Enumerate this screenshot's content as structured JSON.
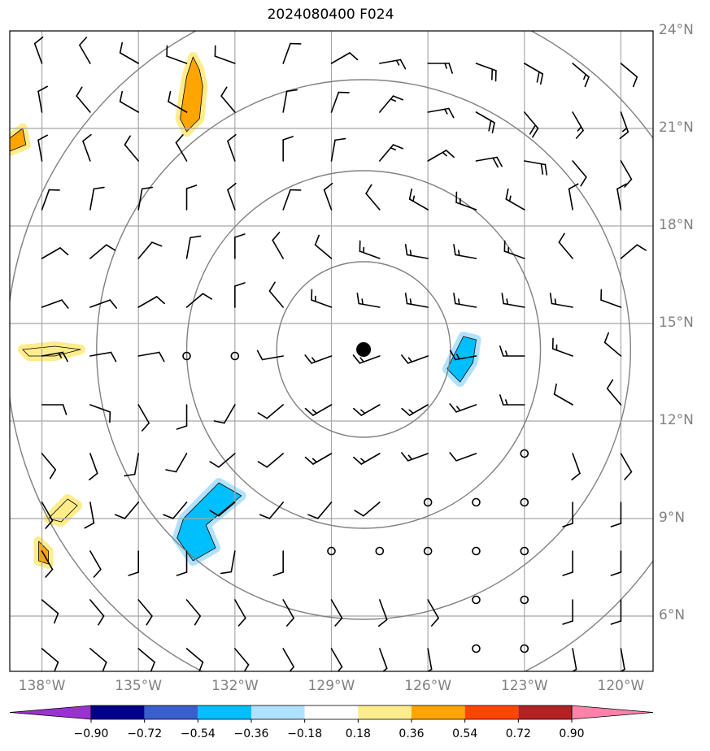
{
  "title": "2024080400 F024",
  "map": {
    "lon_range": [
      -139,
      -119
    ],
    "lat_range": [
      4.3,
      24.0
    ],
    "center": {
      "lon": -128.0,
      "lat": 14.2
    },
    "lat_ticks": [
      6,
      9,
      12,
      15,
      18,
      21,
      24
    ],
    "lat_labels": [
      "6°N",
      "9°N",
      "12°N",
      "15°N",
      "18°N",
      "21°N",
      "24°N"
    ],
    "lon_ticks": [
      -138,
      -135,
      -132,
      -129,
      -126,
      -123,
      -120
    ],
    "lon_labels": [
      "138°W",
      "135°W",
      "132°W",
      "129°W",
      "126°W",
      "123°W",
      "120°W"
    ],
    "range_rings_deg": [
      2.7,
      5.5,
      8.3,
      11.1
    ],
    "colors": {
      "grid": "#a8a8a8",
      "rings": "#808080",
      "barb": "#000000"
    }
  },
  "colorbar": {
    "levels": [
      -0.9,
      -0.72,
      -0.54,
      -0.36,
      -0.18,
      0.18,
      0.36,
      0.54,
      0.72,
      0.9
    ],
    "tick_labels": [
      "−0.90",
      "−0.72",
      "−0.54",
      "−0.36",
      "−0.18",
      "0.18",
      "0.36",
      "0.54",
      "0.72",
      "0.90"
    ],
    "colors": [
      "#9a32cd",
      "#00008b",
      "#3a5fcd",
      "#00bfff",
      "#b0e2ff",
      "#ffffff",
      "#ffec8b",
      "#ffa500",
      "#ff4500",
      "#b22222",
      "#ff82ab"
    ]
  },
  "shaded_regions": [
    {
      "name": "positive-anomaly-nw",
      "level": 0.36,
      "color": "#ffa500",
      "points": [
        [
          -133.3,
          23.2
        ],
        [
          -133.1,
          22.8
        ],
        [
          -133.0,
          22.3
        ],
        [
          -133.1,
          21.3
        ],
        [
          -133.5,
          20.9
        ],
        [
          -133.7,
          21.3
        ],
        [
          -133.6,
          22.0
        ],
        [
          -133.5,
          22.6
        ]
      ]
    },
    {
      "name": "positive-anomaly-w-edge",
      "level": 0.36,
      "color": "#ffa500",
      "points": [
        [
          -139.0,
          20.7
        ],
        [
          -138.6,
          21.0
        ],
        [
          -138.5,
          20.5
        ],
        [
          -139.0,
          20.3
        ]
      ]
    },
    {
      "name": "positive-anomaly-15n",
      "level": 0.18,
      "color": "#ffec8b",
      "points": [
        [
          -138.6,
          14.2
        ],
        [
          -137.6,
          14.3
        ],
        [
          -136.8,
          14.2
        ],
        [
          -137.6,
          14.0
        ],
        [
          -138.4,
          14.0
        ]
      ]
    },
    {
      "name": "positive-anomaly-9n",
      "level": 0.18,
      "color": "#ffec8b",
      "points": [
        [
          -137.8,
          9.0
        ],
        [
          -137.2,
          9.6
        ],
        [
          -136.9,
          9.4
        ],
        [
          -137.4,
          8.9
        ]
      ]
    },
    {
      "name": "positive-anomaly-8n",
      "level": 0.36,
      "color": "#ffa500",
      "points": [
        [
          -138.1,
          8.3
        ],
        [
          -137.8,
          8.0
        ],
        [
          -137.8,
          7.6
        ],
        [
          -138.1,
          7.7
        ]
      ]
    },
    {
      "name": "negative-anomaly-sw",
      "level": -0.36,
      "color": "#00bfff",
      "points": [
        [
          -133.6,
          9.0
        ],
        [
          -132.5,
          10.1
        ],
        [
          -131.8,
          9.7
        ],
        [
          -132.9,
          8.8
        ],
        [
          -132.6,
          8.1
        ],
        [
          -133.3,
          7.7
        ],
        [
          -133.8,
          8.4
        ]
      ]
    },
    {
      "name": "negative-anomaly-e",
      "level": -0.36,
      "color": "#00bfff",
      "points": [
        [
          -124.9,
          14.6
        ],
        [
          -124.5,
          14.5
        ],
        [
          -124.6,
          13.8
        ],
        [
          -125.0,
          13.2
        ],
        [
          -125.4,
          13.6
        ]
      ]
    }
  ],
  "wind_barbs": [
    {
      "lon": -138,
      "lat": 23,
      "dir": 340,
      "spd": 10
    },
    {
      "lon": -136.5,
      "lat": 23,
      "dir": 330,
      "spd": 10
    },
    {
      "lon": -135,
      "lat": 23,
      "dir": 300,
      "spd": 10
    },
    {
      "lon": -133.5,
      "lat": 23,
      "dir": 290,
      "spd": 10
    },
    {
      "lon": -132,
      "lat": 23,
      "dir": 290,
      "spd": 10
    },
    {
      "lon": -130.5,
      "lat": 23,
      "dir": 20,
      "spd": 10
    },
    {
      "lon": -129,
      "lat": 23,
      "dir": 60,
      "spd": 10
    },
    {
      "lon": -127.5,
      "lat": 23,
      "dir": 80,
      "spd": 15
    },
    {
      "lon": -126,
      "lat": 23,
      "dir": 90,
      "spd": 15
    },
    {
      "lon": -124.5,
      "lat": 23,
      "dir": 110,
      "spd": 20
    },
    {
      "lon": -123,
      "lat": 23,
      "dir": 120,
      "spd": 20
    },
    {
      "lon": -121.5,
      "lat": 23,
      "dir": 130,
      "spd": 15
    },
    {
      "lon": -120,
      "lat": 23,
      "dir": 130,
      "spd": 10
    },
    {
      "lon": -138,
      "lat": 21.5,
      "dir": 350,
      "spd": 10
    },
    {
      "lon": -136.5,
      "lat": 21.5,
      "dir": 320,
      "spd": 10
    },
    {
      "lon": -135,
      "lat": 21.5,
      "dir": 300,
      "spd": 10
    },
    {
      "lon": -133.5,
      "lat": 21.5,
      "dir": 300,
      "spd": 10
    },
    {
      "lon": -132,
      "lat": 21.5,
      "dir": 320,
      "spd": 10
    },
    {
      "lon": -130.5,
      "lat": 21.5,
      "dir": 10,
      "spd": 10
    },
    {
      "lon": -129,
      "lat": 21.5,
      "dir": 20,
      "spd": 10
    },
    {
      "lon": -127.5,
      "lat": 21.5,
      "dir": 40,
      "spd": 15
    },
    {
      "lon": -126,
      "lat": 21.5,
      "dir": 80,
      "spd": 15
    },
    {
      "lon": -124.5,
      "lat": 21.5,
      "dir": 120,
      "spd": 20
    },
    {
      "lon": -123,
      "lat": 21.5,
      "dir": 140,
      "spd": 20
    },
    {
      "lon": -121.5,
      "lat": 21.5,
      "dir": 150,
      "spd": 15
    },
    {
      "lon": -120,
      "lat": 21.5,
      "dir": 160,
      "spd": 15
    },
    {
      "lon": -138,
      "lat": 20,
      "dir": 350,
      "spd": 10
    },
    {
      "lon": -136.5,
      "lat": 20,
      "dir": 340,
      "spd": 10
    },
    {
      "lon": -135,
      "lat": 20,
      "dir": 320,
      "spd": 10
    },
    {
      "lon": -133.5,
      "lat": 20,
      "dir": 330,
      "spd": 10
    },
    {
      "lon": -132,
      "lat": 20,
      "dir": 340,
      "spd": 10
    },
    {
      "lon": -130.5,
      "lat": 20,
      "dir": 0,
      "spd": 10
    },
    {
      "lon": -129,
      "lat": 20,
      "dir": 10,
      "spd": 10
    },
    {
      "lon": -127.5,
      "lat": 20,
      "dir": 40,
      "spd": 15
    },
    {
      "lon": -126,
      "lat": 20,
      "dir": 60,
      "spd": 15
    },
    {
      "lon": -124.5,
      "lat": 20,
      "dir": 80,
      "spd": 20
    },
    {
      "lon": -123,
      "lat": 20,
      "dir": 100,
      "spd": 20
    },
    {
      "lon": -121.5,
      "lat": 20,
      "dir": 140,
      "spd": 10
    },
    {
      "lon": -120,
      "lat": 20,
      "dir": 150,
      "spd": 10
    },
    {
      "lon": -138,
      "lat": 18.5,
      "dir": 20,
      "spd": 10
    },
    {
      "lon": -136.5,
      "lat": 18.5,
      "dir": 10,
      "spd": 10
    },
    {
      "lon": -135,
      "lat": 18.5,
      "dir": 10,
      "spd": 10
    },
    {
      "lon": -133.5,
      "lat": 18.5,
      "dir": 0,
      "spd": 10
    },
    {
      "lon": -132,
      "lat": 18.5,
      "dir": 340,
      "spd": 10
    },
    {
      "lon": -130.5,
      "lat": 18.5,
      "dir": 20,
      "spd": 10
    },
    {
      "lon": -129,
      "lat": 18.5,
      "dir": 340,
      "spd": 10
    },
    {
      "lon": -127.5,
      "lat": 18.5,
      "dir": 320,
      "spd": 10
    },
    {
      "lon": -126,
      "lat": 18.5,
      "dir": 300,
      "spd": 15
    },
    {
      "lon": -124.5,
      "lat": 18.5,
      "dir": 290,
      "spd": 15
    },
    {
      "lon": -123,
      "lat": 18.5,
      "dir": 300,
      "spd": 15
    },
    {
      "lon": -121.5,
      "lat": 18.5,
      "dir": 350,
      "spd": 10
    },
    {
      "lon": -120,
      "lat": 18.5,
      "dir": 350,
      "spd": 10
    },
    {
      "lon": -138,
      "lat": 17,
      "dir": 60,
      "spd": 10
    },
    {
      "lon": -136.5,
      "lat": 17,
      "dir": 50,
      "spd": 10
    },
    {
      "lon": -135,
      "lat": 17,
      "dir": 40,
      "spd": 10
    },
    {
      "lon": -133.5,
      "lat": 17,
      "dir": 10,
      "spd": 10
    },
    {
      "lon": -132,
      "lat": 17,
      "dir": 0,
      "spd": 10
    },
    {
      "lon": -130.5,
      "lat": 17,
      "dir": 330,
      "spd": 10
    },
    {
      "lon": -129,
      "lat": 17,
      "dir": 310,
      "spd": 10
    },
    {
      "lon": -127.5,
      "lat": 17,
      "dir": 290,
      "spd": 15
    },
    {
      "lon": -126,
      "lat": 17,
      "dir": 280,
      "spd": 15
    },
    {
      "lon": -124.5,
      "lat": 17,
      "dir": 280,
      "spd": 15
    },
    {
      "lon": -123,
      "lat": 17,
      "dir": 290,
      "spd": 15
    },
    {
      "lon": -121.5,
      "lat": 17,
      "dir": 320,
      "spd": 10
    },
    {
      "lon": -120,
      "lat": 17,
      "dir": 50,
      "spd": 10
    },
    {
      "lon": -138,
      "lat": 15.5,
      "dir": 70,
      "spd": 10
    },
    {
      "lon": -136.5,
      "lat": 15.5,
      "dir": 70,
      "spd": 10
    },
    {
      "lon": -135,
      "lat": 15.5,
      "dir": 60,
      "spd": 10
    },
    {
      "lon": -133.5,
      "lat": 15.5,
      "dir": 50,
      "spd": 10
    },
    {
      "lon": -132,
      "lat": 15.5,
      "dir": 0,
      "spd": 10
    },
    {
      "lon": -130.5,
      "lat": 15.5,
      "dir": 320,
      "spd": 10
    },
    {
      "lon": -129,
      "lat": 15.5,
      "dir": 290,
      "spd": 15
    },
    {
      "lon": -127.5,
      "lat": 15.5,
      "dir": 280,
      "spd": 15
    },
    {
      "lon": -126,
      "lat": 15.5,
      "dir": 280,
      "spd": 15
    },
    {
      "lon": -124.5,
      "lat": 15.5,
      "dir": 280,
      "spd": 15
    },
    {
      "lon": -123,
      "lat": 15.5,
      "dir": 280,
      "spd": 15
    },
    {
      "lon": -121.5,
      "lat": 15.5,
      "dir": 280,
      "spd": 15
    },
    {
      "lon": -120,
      "lat": 15.5,
      "dir": 290,
      "spd": 10
    },
    {
      "lon": -138,
      "lat": 14,
      "dir": 80,
      "spd": 15
    },
    {
      "lon": -136.5,
      "lat": 14,
      "dir": 80,
      "spd": 10
    },
    {
      "lon": -135,
      "lat": 14,
      "dir": 80,
      "spd": 10
    },
    {
      "lon": -133.5,
      "lat": 14,
      "dir": 0,
      "spd": 0
    },
    {
      "lon": -132,
      "lat": 14,
      "dir": 0,
      "spd": 0
    },
    {
      "lon": -130.5,
      "lat": 14,
      "dir": 260,
      "spd": 10
    },
    {
      "lon": -129,
      "lat": 14,
      "dir": 250,
      "spd": 15
    },
    {
      "lon": -127.5,
      "lat": 14,
      "dir": 250,
      "spd": 15
    },
    {
      "lon": -126,
      "lat": 14,
      "dir": 250,
      "spd": 15
    },
    {
      "lon": -124.5,
      "lat": 14,
      "dir": 260,
      "spd": 15
    },
    {
      "lon": -123,
      "lat": 14,
      "dir": 270,
      "spd": 15
    },
    {
      "lon": -121.5,
      "lat": 14,
      "dir": 290,
      "spd": 15
    },
    {
      "lon": -120,
      "lat": 14,
      "dir": 310,
      "spd": 10
    },
    {
      "lon": -138,
      "lat": 12.5,
      "dir": 90,
      "spd": 10
    },
    {
      "lon": -136.5,
      "lat": 12.5,
      "dir": 110,
      "spd": 10
    },
    {
      "lon": -135,
      "lat": 12.5,
      "dir": 150,
      "spd": 10
    },
    {
      "lon": -133.5,
      "lat": 12.5,
      "dir": 180,
      "spd": 10
    },
    {
      "lon": -132,
      "lat": 12.5,
      "dir": 210,
      "spd": 10
    },
    {
      "lon": -130.5,
      "lat": 12.5,
      "dir": 230,
      "spd": 10
    },
    {
      "lon": -129,
      "lat": 12.5,
      "dir": 240,
      "spd": 15
    },
    {
      "lon": -127.5,
      "lat": 12.5,
      "dir": 240,
      "spd": 15
    },
    {
      "lon": -126,
      "lat": 12.5,
      "dir": 240,
      "spd": 15
    },
    {
      "lon": -124.5,
      "lat": 12.5,
      "dir": 250,
      "spd": 15
    },
    {
      "lon": -123,
      "lat": 12.5,
      "dir": 270,
      "spd": 15
    },
    {
      "lon": -121.5,
      "lat": 12.5,
      "dir": 300,
      "spd": 10
    },
    {
      "lon": -120,
      "lat": 12.5,
      "dir": 320,
      "spd": 10
    },
    {
      "lon": -138,
      "lat": 11,
      "dir": 140,
      "spd": 10
    },
    {
      "lon": -136.5,
      "lat": 11,
      "dir": 160,
      "spd": 10
    },
    {
      "lon": -135,
      "lat": 11,
      "dir": 190,
      "spd": 10
    },
    {
      "lon": -133.5,
      "lat": 11,
      "dir": 210,
      "spd": 10
    },
    {
      "lon": -132,
      "lat": 11,
      "dir": 230,
      "spd": 10
    },
    {
      "lon": -130.5,
      "lat": 11,
      "dir": 230,
      "spd": 10
    },
    {
      "lon": -129,
      "lat": 11,
      "dir": 240,
      "spd": 15
    },
    {
      "lon": -127.5,
      "lat": 11,
      "dir": 240,
      "spd": 15
    },
    {
      "lon": -126,
      "lat": 11,
      "dir": 250,
      "spd": 15
    },
    {
      "lon": -124.5,
      "lat": 11,
      "dir": 250,
      "spd": 10
    },
    {
      "lon": -123,
      "lat": 11,
      "dir": 0,
      "spd": 0
    },
    {
      "lon": -121.5,
      "lat": 11,
      "dir": 160,
      "spd": 10
    },
    {
      "lon": -120,
      "lat": 11,
      "dir": 150,
      "spd": 10
    },
    {
      "lon": -138,
      "lat": 9.5,
      "dir": 150,
      "spd": 10
    },
    {
      "lon": -136.5,
      "lat": 9.5,
      "dir": 170,
      "spd": 10
    },
    {
      "lon": -135,
      "lat": 9.5,
      "dir": 220,
      "spd": 10
    },
    {
      "lon": -133.5,
      "lat": 9.5,
      "dir": 220,
      "spd": 10
    },
    {
      "lon": -132,
      "lat": 9.5,
      "dir": 230,
      "spd": 10
    },
    {
      "lon": -130.5,
      "lat": 9.5,
      "dir": 220,
      "spd": 10
    },
    {
      "lon": -129,
      "lat": 9.5,
      "dir": 220,
      "spd": 10
    },
    {
      "lon": -127.5,
      "lat": 9.5,
      "dir": 230,
      "spd": 10
    },
    {
      "lon": -126,
      "lat": 9.5,
      "dir": 0,
      "spd": 0
    },
    {
      "lon": -124.5,
      "lat": 9.5,
      "dir": 0,
      "spd": 0
    },
    {
      "lon": -123,
      "lat": 9.5,
      "dir": 0,
      "spd": 0
    },
    {
      "lon": -121.5,
      "lat": 9.5,
      "dir": 180,
      "spd": 10
    },
    {
      "lon": -120,
      "lat": 9.5,
      "dir": 180,
      "spd": 10
    },
    {
      "lon": -138,
      "lat": 8,
      "dir": 150,
      "spd": 10
    },
    {
      "lon": -136.5,
      "lat": 8,
      "dir": 150,
      "spd": 10
    },
    {
      "lon": -135,
      "lat": 8,
      "dir": 180,
      "spd": 10
    },
    {
      "lon": -133.5,
      "lat": 8,
      "dir": 180,
      "spd": 10
    },
    {
      "lon": -132,
      "lat": 8,
      "dir": 190,
      "spd": 10
    },
    {
      "lon": -130.5,
      "lat": 8,
      "dir": 180,
      "spd": 10
    },
    {
      "lon": -129,
      "lat": 8,
      "dir": 0,
      "spd": 0
    },
    {
      "lon": -127.5,
      "lat": 8,
      "dir": 0,
      "spd": 0
    },
    {
      "lon": -126,
      "lat": 8,
      "dir": 0,
      "spd": 0
    },
    {
      "lon": -124.5,
      "lat": 8,
      "dir": 0,
      "spd": 0
    },
    {
      "lon": -123,
      "lat": 8,
      "dir": 0,
      "spd": 0
    },
    {
      "lon": -121.5,
      "lat": 8,
      "dir": 180,
      "spd": 10
    },
    {
      "lon": -120,
      "lat": 8,
      "dir": 180,
      "spd": 10
    },
    {
      "lon": -138,
      "lat": 6.5,
      "dir": 130,
      "spd": 10
    },
    {
      "lon": -136.5,
      "lat": 6.5,
      "dir": 140,
      "spd": 10
    },
    {
      "lon": -135,
      "lat": 6.5,
      "dir": 140,
      "spd": 10
    },
    {
      "lon": -133.5,
      "lat": 6.5,
      "dir": 140,
      "spd": 10
    },
    {
      "lon": -132,
      "lat": 6.5,
      "dir": 150,
      "spd": 10
    },
    {
      "lon": -130.5,
      "lat": 6.5,
      "dir": 150,
      "spd": 10
    },
    {
      "lon": -129,
      "lat": 6.5,
      "dir": 150,
      "spd": 10
    },
    {
      "lon": -127.5,
      "lat": 6.5,
      "dir": 160,
      "spd": 10
    },
    {
      "lon": -126,
      "lat": 6.5,
      "dir": 150,
      "spd": 10
    },
    {
      "lon": -124.5,
      "lat": 6.5,
      "dir": 0,
      "spd": 0
    },
    {
      "lon": -123,
      "lat": 6.5,
      "dir": 0,
      "spd": 0
    },
    {
      "lon": -121.5,
      "lat": 6.5,
      "dir": 180,
      "spd": 10
    },
    {
      "lon": -120,
      "lat": 6.5,
      "dir": 180,
      "spd": 10
    },
    {
      "lon": -138,
      "lat": 5,
      "dir": 130,
      "spd": 10
    },
    {
      "lon": -136.5,
      "lat": 5,
      "dir": 130,
      "spd": 10
    },
    {
      "lon": -135,
      "lat": 5,
      "dir": 130,
      "spd": 10
    },
    {
      "lon": -133.5,
      "lat": 5,
      "dir": 130,
      "spd": 10
    },
    {
      "lon": -132,
      "lat": 5,
      "dir": 140,
      "spd": 10
    },
    {
      "lon": -130.5,
      "lat": 5,
      "dir": 150,
      "spd": 10
    },
    {
      "lon": -129,
      "lat": 5,
      "dir": 150,
      "spd": 10
    },
    {
      "lon": -127.5,
      "lat": 5,
      "dir": 160,
      "spd": 10
    },
    {
      "lon": -126,
      "lat": 5,
      "dir": 170,
      "spd": 10
    },
    {
      "lon": -124.5,
      "lat": 5,
      "dir": 0,
      "spd": 0
    },
    {
      "lon": -123,
      "lat": 5,
      "dir": 0,
      "spd": 0
    },
    {
      "lon": -121.5,
      "lat": 5,
      "dir": 170,
      "spd": 10
    },
    {
      "lon": -120,
      "lat": 5,
      "dir": 170,
      "spd": 10
    }
  ]
}
